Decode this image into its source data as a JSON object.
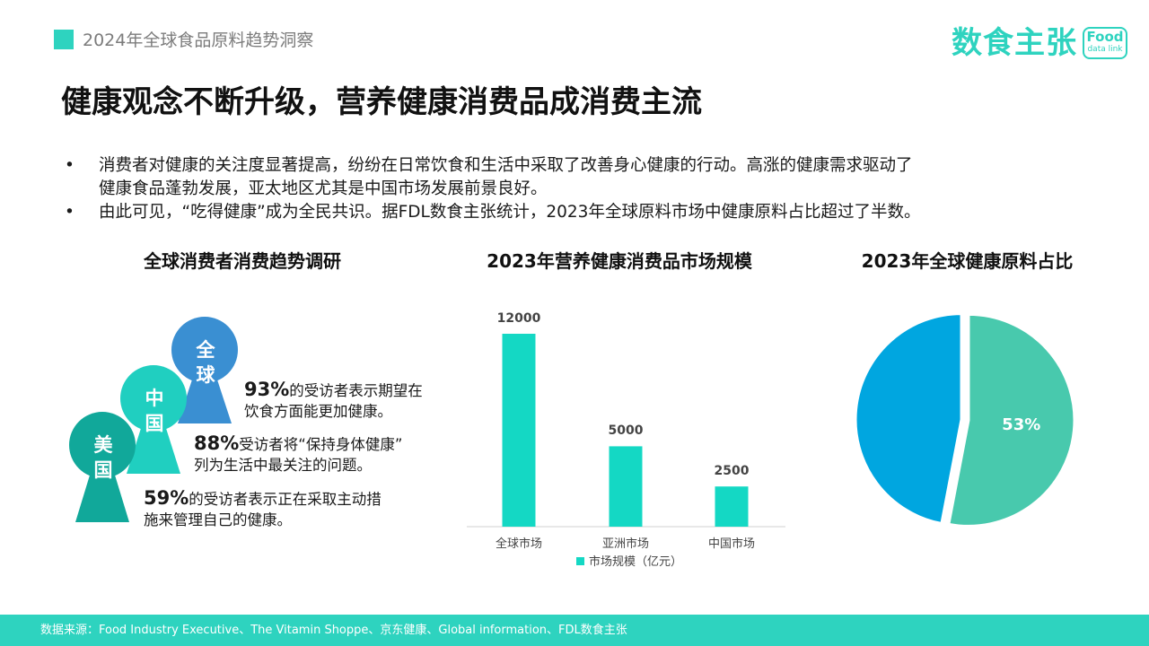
{
  "header": {
    "section": "2024年全球食品原料趋势洞察",
    "logo_text": "数食主张",
    "logo_badge_line1": "Food",
    "logo_badge_line2": "data link"
  },
  "title": "健康观念不断升级，营养健康消费品成消费主流",
  "bullets": [
    {
      "marker": "•",
      "lines": [
        "消费者对健康的关注度显著提高，纷纷在日常饮食和生活中采取了改善身心健康的行动。高涨的健康需求驱动了",
        "健康食品蓬勃发展，亚太地区尤其是中国市场发展前景良好。"
      ]
    },
    {
      "marker": "•",
      "lines": [
        "由此可见，“吃得健康”成为全民共识。据FDL数食主张统计，2023年全球原料市场中健康原料占比超过了半数。"
      ]
    }
  ],
  "survey": {
    "heading": "全球消费者消费趋势调研",
    "keyholes": [
      {
        "label": "全球",
        "color": "#3a8fd2"
      },
      {
        "label": "中国",
        "color": "#20cfc0"
      },
      {
        "label": "美国",
        "color": "#11a89a"
      }
    ],
    "stats": [
      {
        "pct": "93%",
        "line1": "的受访者表示期望在",
        "line2": "饮食方面能更加健康。"
      },
      {
        "pct": "88%",
        "line1": "受访者将“保持身体健康”",
        "line2": "列为生活中最关注的问题。"
      },
      {
        "pct": "59%",
        "line1": "的受访者表示正在采取主动措",
        "line2": "施来管理自己的健康。"
      }
    ]
  },
  "bar_heading": "2023年营养健康消费品市场规模",
  "pie_heading": "2023年全球健康原料占比",
  "chart_data": [
    {
      "type": "bar",
      "title": "2023年营养健康消费品市场规模",
      "categories": [
        "全球市场",
        "亚洲市场",
        "中国市场"
      ],
      "values": [
        12000,
        5000,
        2500
      ],
      "value_labels": [
        "12000",
        "5000",
        "2500"
      ],
      "series": [
        {
          "name": "市场规模（亿元）",
          "values": [
            12000,
            5000,
            2500
          ]
        }
      ],
      "ylim": [
        0,
        12000
      ],
      "grid": false,
      "legend": "bottom",
      "color": "#14d8c4"
    },
    {
      "type": "pie",
      "title": "2023年全球健康原料占比",
      "slices": [
        {
          "value": 53,
          "label": "53%",
          "color": "#48c9ad"
        },
        {
          "value": 47,
          "label": "",
          "color": "#00a6e0"
        }
      ],
      "legend": "none"
    }
  ],
  "footer": "数据来源：Food Industry Executive、The Vitamin Shoppe、京东健康、Global information、FDL数食主张"
}
